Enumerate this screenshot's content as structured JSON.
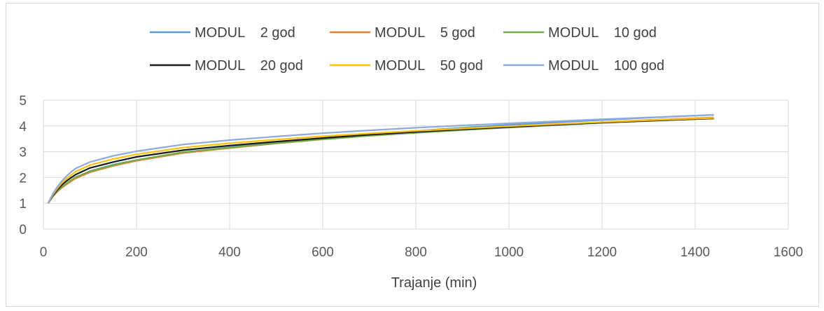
{
  "chart_data": {
    "type": "line",
    "title": "",
    "xlabel": "Trajanje (min)",
    "ylabel": "",
    "xlim": [
      0,
      1600
    ],
    "ylim": [
      0,
      5
    ],
    "xticks": [
      0,
      200,
      400,
      600,
      800,
      1000,
      1200,
      1400,
      1600
    ],
    "yticks": [
      0,
      1,
      2,
      3,
      4,
      5
    ],
    "grid": true,
    "legend_position": "top",
    "x": [
      10,
      20,
      30,
      40,
      50,
      60,
      70,
      100,
      150,
      200,
      300,
      400,
      500,
      600,
      700,
      800,
      900,
      1000,
      1100,
      1200,
      1300,
      1440
    ],
    "series": [
      {
        "name": "MODUL    2 god",
        "color": "#5b9bd5",
        "values": [
          1.0,
          1.27,
          1.47,
          1.63,
          1.77,
          1.89,
          2.0,
          2.25,
          2.5,
          2.68,
          2.97,
          3.18,
          3.37,
          3.53,
          3.68,
          3.81,
          3.93,
          4.04,
          4.14,
          4.23,
          4.32,
          4.43
        ]
      },
      {
        "name": "MODUL    5 god",
        "color": "#ed7d31",
        "values": [
          1.0,
          1.25,
          1.45,
          1.61,
          1.74,
          1.86,
          1.97,
          2.2,
          2.45,
          2.65,
          2.95,
          3.14,
          3.32,
          3.48,
          3.62,
          3.74,
          3.85,
          3.96,
          4.06,
          4.15,
          4.23,
          4.33
        ]
      },
      {
        "name": "MODUL    10 god",
        "color": "#70ad47",
        "values": [
          1.0,
          1.27,
          1.48,
          1.64,
          1.78,
          1.9,
          2.02,
          2.24,
          2.48,
          2.68,
          2.98,
          3.16,
          3.33,
          3.48,
          3.62,
          3.73,
          3.84,
          3.94,
          4.03,
          4.12,
          4.19,
          4.29
        ]
      },
      {
        "name": "MODUL    20 god",
        "color": "#1a1a1a",
        "values": [
          1.0,
          1.3,
          1.53,
          1.72,
          1.87,
          2.0,
          2.12,
          2.37,
          2.6,
          2.8,
          3.06,
          3.24,
          3.39,
          3.53,
          3.66,
          3.77,
          3.87,
          3.96,
          4.05,
          4.13,
          4.2,
          4.29
        ]
      },
      {
        "name": "MODUL    50 god",
        "color": "#ffc000",
        "values": [
          1.0,
          1.33,
          1.58,
          1.79,
          1.96,
          2.1,
          2.24,
          2.48,
          2.72,
          2.9,
          3.16,
          3.33,
          3.47,
          3.6,
          3.71,
          3.81,
          3.9,
          3.99,
          4.07,
          4.15,
          4.22,
          4.31
        ]
      },
      {
        "name": "MODUL    100 god",
        "color": "#8faadc",
        "values": [
          1.0,
          1.36,
          1.64,
          1.87,
          2.06,
          2.22,
          2.36,
          2.6,
          2.84,
          3.02,
          3.28,
          3.45,
          3.59,
          3.72,
          3.83,
          3.93,
          4.02,
          4.1,
          4.18,
          4.26,
          4.33,
          4.43
        ]
      }
    ]
  }
}
